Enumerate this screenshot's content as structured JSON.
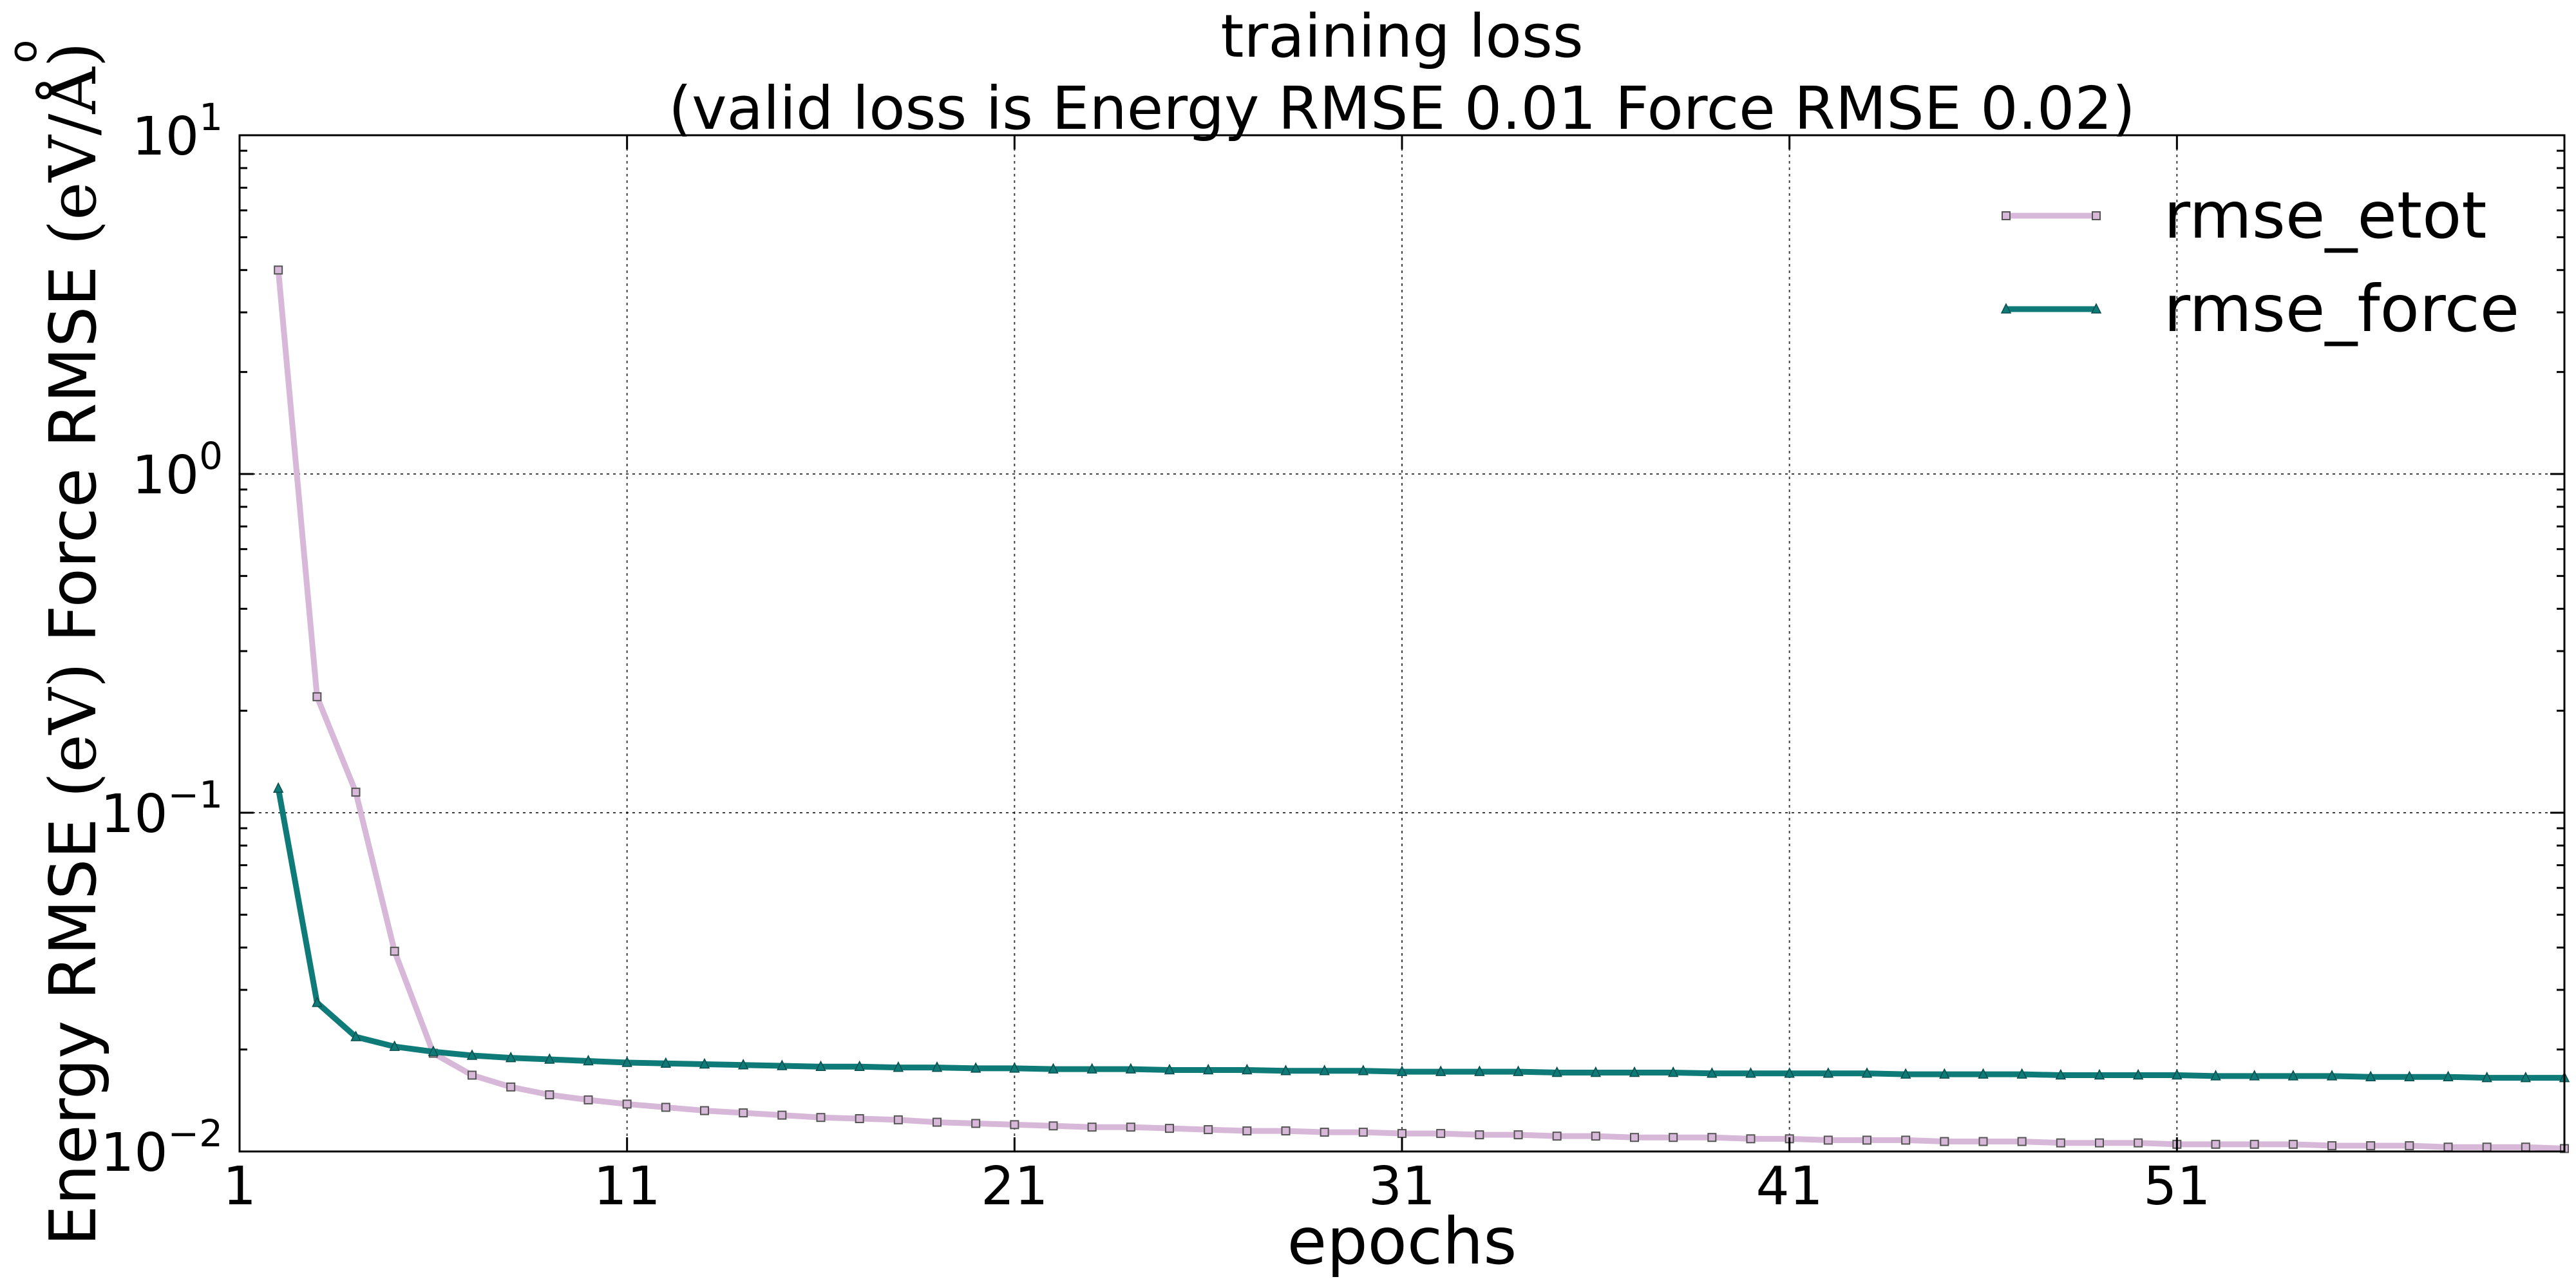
{
  "chart_data": {
    "type": "line",
    "title": "training loss",
    "subtitle": "(valid loss is Energy RMSE 0.01  Force RMSE 0.02)",
    "xlabel": "epochs",
    "ylabel_parts": [
      "Energy RMSE ",
      "(eV)",
      "  Force RMSE ",
      "(eV/Å)"
    ],
    "ylabel_ring": "o",
    "x_ticks": [
      1,
      11,
      21,
      31,
      41,
      51
    ],
    "xlim": [
      1,
      61
    ],
    "y_scale": "log",
    "ylim": [
      0.01,
      10
    ],
    "y_ticks": [
      {
        "base": "10",
        "exp": "1",
        "value": 10
      },
      {
        "base": "10",
        "exp": "0",
        "value": 1
      },
      {
        "base": "10",
        "exp": "−1",
        "value": 0.1
      },
      {
        "base": "10",
        "exp": "−2",
        "value": 0.01
      }
    ],
    "grid": true,
    "legend_position": "top-right",
    "x": [
      2,
      3,
      4,
      5,
      6,
      7,
      8,
      9,
      10,
      11,
      12,
      13,
      14,
      15,
      16,
      17,
      18,
      19,
      20,
      21,
      22,
      23,
      24,
      25,
      26,
      27,
      28,
      29,
      30,
      31,
      32,
      33,
      34,
      35,
      36,
      37,
      38,
      39,
      40,
      41,
      42,
      43,
      44,
      45,
      46,
      47,
      48,
      49,
      50,
      51,
      52,
      53,
      54,
      55,
      56,
      57,
      58,
      59,
      60,
      61
    ],
    "series": [
      {
        "name": "rmse_etot",
        "color": "#d8b8d8",
        "marker": "square",
        "values": [
          4.0,
          0.22,
          0.115,
          0.039,
          0.0195,
          0.0168,
          0.0155,
          0.0147,
          0.0142,
          0.0138,
          0.0135,
          0.0132,
          0.013,
          0.0128,
          0.0126,
          0.0125,
          0.0124,
          0.0122,
          0.0121,
          0.012,
          0.0119,
          0.0118,
          0.0118,
          0.0117,
          0.0116,
          0.0115,
          0.0115,
          0.0114,
          0.0114,
          0.0113,
          0.0113,
          0.0112,
          0.0112,
          0.0111,
          0.0111,
          0.011,
          0.011,
          0.011,
          0.0109,
          0.0109,
          0.0108,
          0.0108,
          0.0108,
          0.0107,
          0.0107,
          0.0107,
          0.0106,
          0.0106,
          0.0106,
          0.0105,
          0.0105,
          0.0105,
          0.0105,
          0.0104,
          0.0104,
          0.0104,
          0.0103,
          0.0103,
          0.0103,
          0.0102
        ]
      },
      {
        "name": "rmse_force",
        "color": "#0f7b78",
        "marker": "triangle",
        "values": [
          0.118,
          0.0275,
          0.0218,
          0.0204,
          0.0197,
          0.0192,
          0.0189,
          0.0187,
          0.0185,
          0.0183,
          0.0182,
          0.0181,
          0.018,
          0.0179,
          0.0178,
          0.0178,
          0.0177,
          0.0177,
          0.0176,
          0.0176,
          0.0175,
          0.0175,
          0.0175,
          0.0174,
          0.0174,
          0.0174,
          0.0173,
          0.0173,
          0.0173,
          0.0172,
          0.0172,
          0.0172,
          0.0172,
          0.0171,
          0.0171,
          0.0171,
          0.0171,
          0.017,
          0.017,
          0.017,
          0.017,
          0.017,
          0.0169,
          0.0169,
          0.0169,
          0.0169,
          0.0168,
          0.0168,
          0.0168,
          0.0168,
          0.0167,
          0.0167,
          0.0167,
          0.0167,
          0.0166,
          0.0166,
          0.0166,
          0.0165,
          0.0165,
          0.0165
        ]
      }
    ]
  }
}
